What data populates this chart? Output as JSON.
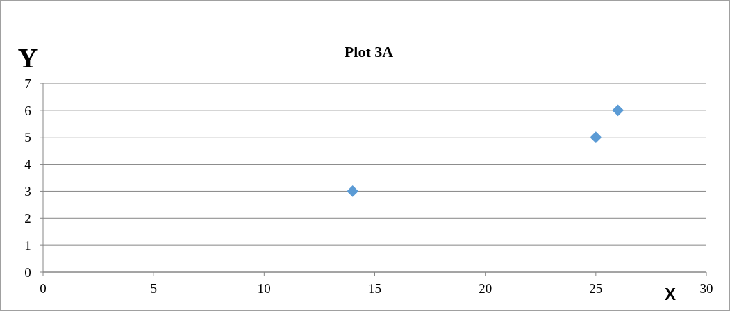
{
  "chart_data": {
    "type": "scatter",
    "title": "Plot 3A",
    "xlabel": "X",
    "ylabel": "Y",
    "x": [
      14,
      25,
      26
    ],
    "series": [
      {
        "color": "#5b9bd5",
        "values": [
          3,
          5,
          6
        ]
      }
    ],
    "xlim": [
      0,
      30
    ],
    "xticks": [
      0,
      5,
      10,
      15,
      20,
      25,
      30
    ],
    "ylim": [
      0,
      7
    ],
    "yticks": [
      0,
      1,
      2,
      3,
      4,
      5,
      6,
      7
    ],
    "grid": "y",
    "marker": "diamond"
  }
}
